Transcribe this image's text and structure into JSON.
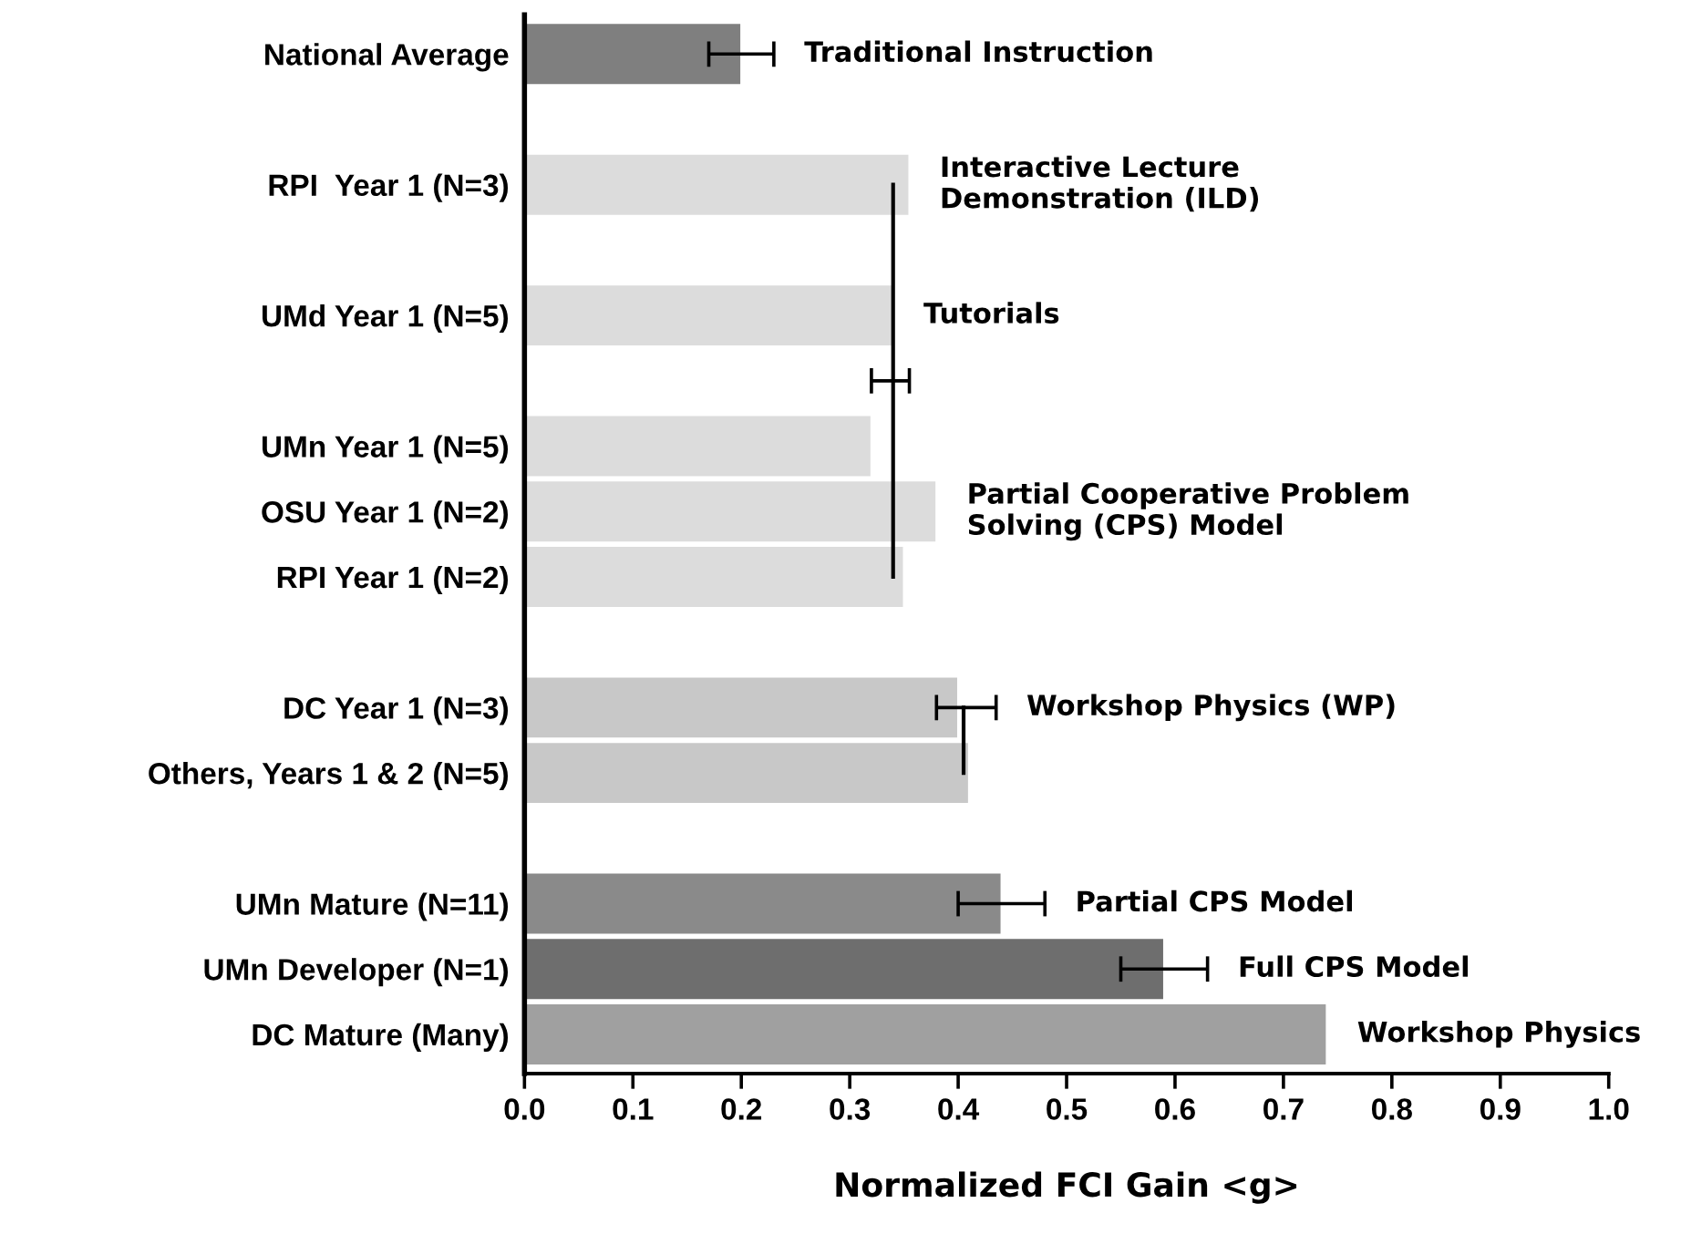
{
  "chart_data": {
    "type": "bar",
    "orientation": "horizontal",
    "xlabel": "Normalized FCI Gain <g>",
    "categories": [
      "National Average",
      null,
      "RPI  Year 1 (N=3)",
      null,
      "UMd Year 1 (N=5)",
      null,
      "UMn Year 1 (N=5)",
      "OSU Year 1 (N=2)",
      "RPI Year 1 (N=2)",
      null,
      "DC Year 1 (N=3)",
      "Others, Years 1 & 2 (N=5)",
      null,
      "UMn Mature (N=11)",
      "UMn Developer (N=1)",
      "DC Mature (Many)"
    ],
    "series": [
      {
        "values": [
          0.2,
          null,
          0.355,
          null,
          0.34,
          null,
          0.32,
          0.38,
          0.35,
          null,
          0.4,
          0.41,
          null,
          0.44,
          0.59,
          0.74
        ],
        "colors": [
          "#7f7f7f",
          null,
          "#dcdcdc",
          null,
          "#dcdcdc",
          null,
          "#dcdcdc",
          "#dcdcdc",
          "#dcdcdc",
          null,
          "#c8c8c8",
          "#c8c8c8",
          null,
          "#8a8a8a",
          "#6e6e6e",
          "#a0a0a0"
        ],
        "errors": [
          0.03,
          null,
          null,
          null,
          null,
          null,
          null,
          null,
          null,
          null,
          null,
          null,
          null,
          0.04,
          0.04,
          null
        ]
      },
      {
        "type": "line",
        "color": "#000000",
        "values": [
          null,
          null,
          0.34,
          0.34,
          0.34,
          0.34,
          0.34,
          0.34,
          0.34,
          null,
          0.405,
          0.405,
          null,
          null,
          null,
          null
        ],
        "errors": [
          null,
          null,
          null,
          null,
          null,
          [
            0.32,
            0.355
          ],
          null,
          null,
          null,
          null,
          [
            0.38,
            0.435
          ],
          null,
          null,
          null,
          null,
          null
        ]
      }
    ],
    "xlim": [
      0,
      1
    ],
    "xticks": [
      {
        "value": 0,
        "label": "0.0"
      },
      0.1,
      0.2,
      0.3,
      0.4,
      0.5,
      0.6,
      0.7,
      0.8,
      0.9,
      {
        "value": 1,
        "label": "1.0"
      }
    ],
    "grid": false,
    "legend": false,
    "annotations": [
      {
        "text": "Traditional Instruction",
        "x": 0.23,
        "y": "National Average"
      },
      {
        "text": "Interactive Lecture\nDemonstration (ILD)",
        "x": 0.355,
        "y": "RPI  Year 1 (N=3)"
      },
      {
        "text": "Tutorials",
        "x": 0.34,
        "y": "UMd Year 1 (N=5)"
      },
      {
        "text": "Partial Cooperative Problem\nSolving (CPS) Model",
        "x": 0.38,
        "y": "OSU Year 1 (N=2)"
      },
      {
        "text": "Workshop Physics (WP)",
        "x": 0.435,
        "y": "DC Year 1 (N=3)"
      },
      {
        "text": "Partial CPS Model",
        "x": 0.48,
        "y": "UMn Mature (N=11)"
      },
      {
        "text": "Full CPS Model",
        "x": 0.63,
        "y": "UMn Developer (N=1)"
      },
      {
        "text": "Workshop Physics",
        "x": 0.74,
        "y": "DC Mature (Many)"
      }
    ]
  }
}
